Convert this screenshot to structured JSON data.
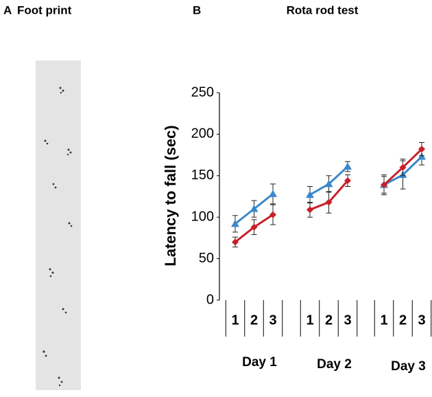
{
  "panels": [
    {
      "letter": "A",
      "title": "Foot print"
    },
    {
      "letter": "B",
      "title": "Rota rod test"
    }
  ],
  "chart_data": {
    "type": "line",
    "title": "Rota rod test",
    "y_label": "Latency to fall (sec)",
    "ylim": [
      0,
      250
    ],
    "yticks": [
      0,
      50,
      100,
      150,
      200,
      250
    ],
    "groups": [
      {
        "label": "Day 1",
        "categories": [
          "1",
          "2",
          "3"
        ]
      },
      {
        "label": "Day 2",
        "categories": [
          "1",
          "2",
          "3"
        ]
      },
      {
        "label": "Day 3",
        "categories": [
          "1",
          "2",
          "3"
        ]
      }
    ],
    "series": [
      {
        "color": "#3b88c9",
        "marker": "triangle",
        "values": [
          [
            92,
            110,
            128
          ],
          [
            127,
            140,
            161
          ],
          [
            139,
            151,
            173
          ]
        ],
        "errors": [
          [
            10,
            10,
            12
          ],
          [
            10,
            10,
            6
          ],
          [
            12,
            17,
            10
          ]
        ]
      },
      {
        "color": "#c8202a",
        "marker": "diamond",
        "values": [
          [
            70,
            88,
            103
          ],
          [
            109,
            118,
            144
          ],
          [
            139,
            160,
            182
          ]
        ],
        "errors": [
          [
            6,
            9,
            12
          ],
          [
            9,
            13,
            7
          ],
          [
            10,
            10,
            8
          ]
        ]
      }
    ]
  }
}
